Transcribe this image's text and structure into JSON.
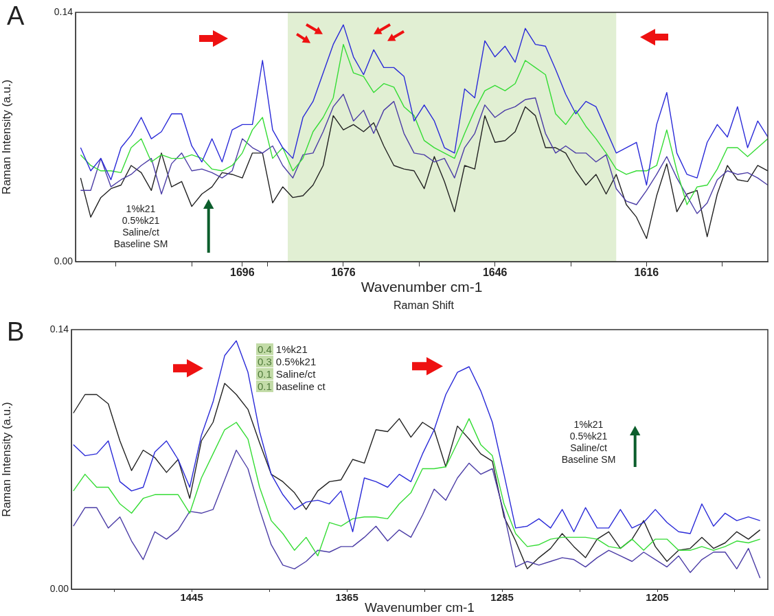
{
  "chart_data": [
    {
      "type": "line",
      "title": "A",
      "xlabel": "Wavenumber cm-1",
      "ylabel": "Raman Intensity (a.u.)",
      "marker": "none",
      "xlim": [
        1729,
        1592
      ],
      "ylim": [
        0,
        0.14
      ],
      "xticks": [
        {
          "value": 1721,
          "label": null
        },
        {
          "value": 1706,
          "label": null
        },
        1696,
        {
          "value": 1691,
          "label": null
        },
        1676,
        {
          "value": 1661,
          "label": null
        },
        1646,
        {
          "value": 1631,
          "label": null
        },
        1616,
        {
          "value": 1601,
          "label": null
        }
      ],
      "yticks": [
        {
          "value": 0,
          "label": "0.00"
        },
        0.14
      ],
      "bands": [
        {
          "axis": "x",
          "from": 1687,
          "to": 1622,
          "color": "#e1efd3"
        }
      ],
      "annotations": [
        "1%k21\n0.5%k21\nSaline/ct\nBaseline SM",
        "Raman Shift"
      ],
      "x": [
        1728,
        1726,
        1724,
        1722,
        1720,
        1718,
        1716,
        1714,
        1712,
        1710,
        1708,
        1706,
        1704,
        1702,
        1700,
        1698,
        1696,
        1694,
        1692,
        1690,
        1688,
        1686,
        1684,
        1682,
        1680,
        1678,
        1676,
        1674,
        1672,
        1670,
        1668,
        1666,
        1664,
        1662,
        1660,
        1658,
        1656,
        1654,
        1652,
        1650,
        1648,
        1646,
        1644,
        1642,
        1640,
        1638,
        1636,
        1634,
        1632,
        1630,
        1628,
        1626,
        1624,
        1622,
        1620,
        1618,
        1616,
        1614,
        1612,
        1610,
        1608,
        1606,
        1604,
        1602,
        1600,
        1598,
        1596,
        1594,
        1592
      ],
      "series": [
        {
          "color": "#2a2ad8",
          "values": [
            0.064,
            0.051,
            0.058,
            0.046,
            0.064,
            0.071,
            0.081,
            0.069,
            0.073,
            0.083,
            0.083,
            0.065,
            0.056,
            0.069,
            0.056,
            0.074,
            0.077,
            0.077,
            0.113,
            0.074,
            0.064,
            0.058,
            0.081,
            0.09,
            0.106,
            0.122,
            0.133,
            0.115,
            0.105,
            0.119,
            0.109,
            0.109,
            0.104,
            0.079,
            0.088,
            0.079,
            0.064,
            0.061,
            0.097,
            0.092,
            0.124,
            0.115,
            0.121,
            0.112,
            0.131,
            0.122,
            0.121,
            0.108,
            0.094,
            0.083,
            0.09,
            0.087,
            0.074,
            0.061,
            0.064,
            0.067,
            0.043,
            0.077,
            0.095,
            0.061,
            0.049,
            0.047,
            0.067,
            0.077,
            0.07,
            0.087,
            0.064,
            0.079,
            0.07
          ]
        },
        {
          "color": "#35dc35",
          "values": [
            0.06,
            0.054,
            0.051,
            0.051,
            0.05,
            0.064,
            0.069,
            0.056,
            0.06,
            0.058,
            0.058,
            0.06,
            0.058,
            0.052,
            0.051,
            0.054,
            0.061,
            0.074,
            0.081,
            0.058,
            0.064,
            0.051,
            0.058,
            0.073,
            0.081,
            0.092,
            0.122,
            0.106,
            0.104,
            0.095,
            0.1,
            0.098,
            0.087,
            0.082,
            0.068,
            0.064,
            0.061,
            0.058,
            0.072,
            0.085,
            0.096,
            0.099,
            0.096,
            0.1,
            0.113,
            0.109,
            0.105,
            0.083,
            0.077,
            0.085,
            0.076,
            0.069,
            0.061,
            0.052,
            0.049,
            0.051,
            0.051,
            0.054,
            0.074,
            0.051,
            0.032,
            0.042,
            0.043,
            0.052,
            0.064,
            0.064,
            0.059,
            0.064,
            0.069
          ]
        },
        {
          "color": "#4b3ca6",
          "values": [
            0.04,
            0.04,
            0.058,
            0.042,
            0.046,
            0.049,
            0.054,
            0.058,
            0.038,
            0.055,
            0.061,
            0.051,
            0.052,
            0.05,
            0.047,
            0.051,
            0.069,
            0.064,
            0.061,
            0.065,
            0.054,
            0.047,
            0.06,
            0.061,
            0.073,
            0.087,
            0.094,
            0.079,
            0.085,
            0.072,
            0.085,
            0.09,
            0.072,
            0.061,
            0.06,
            0.056,
            0.058,
            0.047,
            0.064,
            0.072,
            0.088,
            0.081,
            0.085,
            0.087,
            0.091,
            0.092,
            0.072,
            0.061,
            0.065,
            0.061,
            0.061,
            0.056,
            0.06,
            0.041,
            0.034,
            0.032,
            0.04,
            0.049,
            0.059,
            0.047,
            0.037,
            0.027,
            0.033,
            0.046,
            0.051,
            0.049,
            0.05,
            0.047,
            0.043
          ]
        },
        {
          "color": "#222222",
          "values": [
            0.047,
            0.025,
            0.036,
            0.041,
            0.043,
            0.054,
            0.05,
            0.04,
            0.061,
            0.042,
            0.045,
            0.031,
            0.038,
            0.042,
            0.05,
            0.049,
            0.047,
            0.061,
            0.061,
            0.033,
            0.042,
            0.036,
            0.037,
            0.043,
            0.054,
            0.082,
            0.074,
            0.077,
            0.073,
            0.078,
            0.065,
            0.054,
            0.052,
            0.051,
            0.041,
            0.059,
            0.045,
            0.028,
            0.054,
            0.052,
            0.082,
            0.067,
            0.068,
            0.073,
            0.087,
            0.082,
            0.064,
            0.064,
            0.061,
            0.051,
            0.043,
            0.049,
            0.038,
            0.049,
            0.032,
            0.025,
            0.013,
            0.037,
            0.055,
            0.028,
            0.038,
            0.04,
            0.014,
            0.038,
            0.054,
            0.046,
            0.045,
            0.054,
            0.051
          ]
        }
      ]
    },
    {
      "type": "line",
      "title": "B",
      "xlabel": "Wavenumber cm-1",
      "ylabel": "Raman Intensity (a.u.)",
      "marker": "none",
      "xlim": [
        1507,
        1148
      ],
      "ylim": [
        0,
        0.14
      ],
      "xticks": [
        {
          "value": 1485,
          "label": null
        },
        1445,
        {
          "value": 1405,
          "label": null
        },
        1365,
        {
          "value": 1325,
          "label": null
        },
        1285,
        {
          "value": 1245,
          "label": null
        },
        1205,
        {
          "value": 1165,
          "label": null
        }
      ],
      "yticks": [
        {
          "value": 0,
          "label": "0.00"
        },
        0.14
      ],
      "annotations": [
        "0.4 1%k21",
        "0.3 0.5%k21",
        "0.1 Saline/ct",
        "0.1 baseline ct",
        "1%k21\n0.5%k21\nSaline/ct\nBaseline SM"
      ],
      "x": [
        1506,
        1500,
        1494,
        1488,
        1482,
        1476,
        1470,
        1464,
        1458,
        1452,
        1446,
        1440,
        1434,
        1428,
        1422,
        1416,
        1410,
        1404,
        1398,
        1392,
        1386,
        1380,
        1374,
        1368,
        1362,
        1356,
        1350,
        1344,
        1338,
        1332,
        1326,
        1320,
        1314,
        1308,
        1302,
        1296,
        1290,
        1284,
        1278,
        1272,
        1266,
        1260,
        1254,
        1248,
        1242,
        1236,
        1230,
        1224,
        1218,
        1212,
        1206,
        1200,
        1194,
        1188,
        1182,
        1176,
        1170,
        1164,
        1158,
        1152
      ],
      "series": [
        {
          "color": "#2a2ad8",
          "values": [
            0.078,
            0.072,
            0.073,
            0.08,
            0.058,
            0.053,
            0.055,
            0.074,
            0.08,
            0.07,
            0.055,
            0.083,
            0.101,
            0.126,
            0.134,
            0.117,
            0.085,
            0.062,
            0.051,
            0.043,
            0.047,
            0.048,
            0.046,
            0.053,
            0.031,
            0.06,
            0.058,
            0.055,
            0.062,
            0.058,
            0.073,
            0.086,
            0.105,
            0.117,
            0.12,
            0.107,
            0.09,
            0.062,
            0.033,
            0.034,
            0.038,
            0.033,
            0.043,
            0.031,
            0.044,
            0.033,
            0.033,
            0.043,
            0.033,
            0.036,
            0.043,
            0.036,
            0.031,
            0.03,
            0.046,
            0.034,
            0.041,
            0.037,
            0.039,
            0.037
          ]
        },
        {
          "color": "#35dc35",
          "values": [
            0.053,
            0.062,
            0.055,
            0.055,
            0.046,
            0.041,
            0.049,
            0.051,
            0.051,
            0.051,
            0.041,
            0.06,
            0.073,
            0.086,
            0.09,
            0.081,
            0.055,
            0.037,
            0.03,
            0.021,
            0.028,
            0.018,
            0.036,
            0.034,
            0.038,
            0.039,
            0.039,
            0.038,
            0.046,
            0.052,
            0.065,
            0.065,
            0.066,
            0.079,
            0.092,
            0.078,
            0.072,
            0.046,
            0.03,
            0.023,
            0.024,
            0.027,
            0.028,
            0.028,
            0.028,
            0.027,
            0.023,
            0.022,
            0.027,
            0.021,
            0.027,
            0.027,
            0.021,
            0.021,
            0.023,
            0.021,
            0.023,
            0.026,
            0.025,
            0.027
          ]
        },
        {
          "color": "#4b3ca6",
          "values": [
            0.034,
            0.044,
            0.044,
            0.033,
            0.039,
            0.026,
            0.016,
            0.031,
            0.027,
            0.032,
            0.042,
            0.041,
            0.043,
            0.059,
            0.075,
            0.065,
            0.043,
            0.024,
            0.013,
            0.011,
            0.015,
            0.021,
            0.02,
            0.023,
            0.023,
            0.028,
            0.034,
            0.026,
            0.032,
            0.028,
            0.04,
            0.054,
            0.048,
            0.06,
            0.068,
            0.062,
            0.065,
            0.041,
            0.012,
            0.015,
            0.013,
            0.015,
            0.017,
            0.016,
            0.012,
            0.017,
            0.021,
            0.018,
            0.015,
            0.02,
            0.016,
            0.012,
            0.018,
            0.009,
            0.016,
            0.02,
            0.02,
            0.011,
            0.022,
            0.006
          ]
        },
        {
          "color": "#222222",
          "values": [
            0.095,
            0.105,
            0.105,
            0.1,
            0.08,
            0.064,
            0.075,
            0.071,
            0.063,
            0.07,
            0.049,
            0.08,
            0.09,
            0.111,
            0.105,
            0.097,
            0.079,
            0.062,
            0.058,
            0.052,
            0.043,
            0.053,
            0.058,
            0.059,
            0.07,
            0.068,
            0.086,
            0.085,
            0.092,
            0.082,
            0.09,
            0.086,
            0.066,
            0.088,
            0.081,
            0.073,
            0.069,
            0.039,
            0.026,
            0.011,
            0.017,
            0.022,
            0.03,
            0.023,
            0.017,
            0.027,
            0.031,
            0.022,
            0.027,
            0.037,
            0.023,
            0.015,
            0.021,
            0.022,
            0.028,
            0.022,
            0.025,
            0.031,
            0.027,
            0.032
          ]
        }
      ]
    }
  ]
}
